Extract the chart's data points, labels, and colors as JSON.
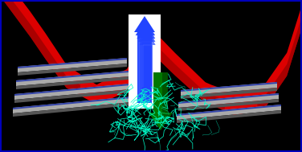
{
  "background_color": "#000000",
  "border_color": "#0000bb",
  "red_color": "#dd0000",
  "red_dark": "#880000",
  "red_mid": "#aa0000",
  "gray_top": "#aaaaaa",
  "gray_side": "#555555",
  "blue_strip": "#3344aa",
  "blue_arrow": "#2244ff",
  "blue_arrow_light": "#aabbff",
  "green_arrow": "#004400",
  "green_mid": "#007700",
  "green_bright": "#00cc00",
  "cyan": "#00ffcc",
  "white": "#ffffff",
  "figsize": [
    3.76,
    1.89
  ],
  "dpi": 100
}
